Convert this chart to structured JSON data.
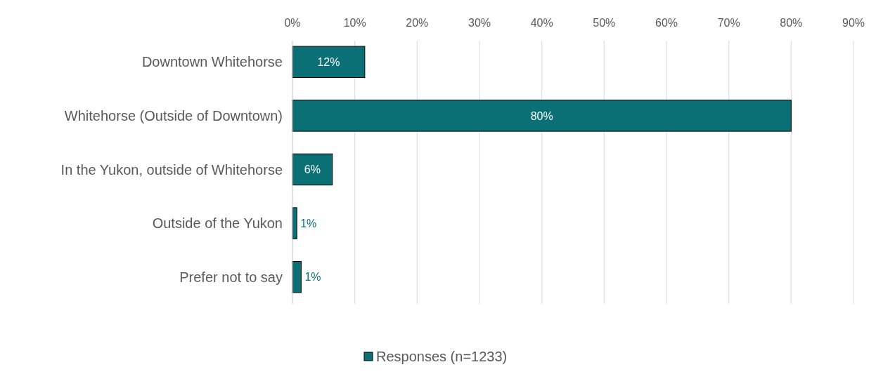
{
  "chart_data": {
    "type": "bar",
    "orientation": "horizontal",
    "categories": [
      "Downtown Whitehorse",
      "Whitehorse (Outside of Downtown)",
      "In the Yukon, outside of Whitehorse",
      "Outside of the Yukon",
      "Prefer not to say"
    ],
    "series": [
      {
        "name": "Responses (n=1233)",
        "color": "#0a7076",
        "values": [
          11.6,
          80,
          6.4,
          0.7,
          1.4
        ],
        "value_labels": [
          "12%",
          "80%",
          "6%",
          "1%",
          "1%"
        ]
      }
    ],
    "xlim": [
      0,
      90
    ],
    "xticks": [
      {
        "value": 0,
        "label": "0%"
      },
      {
        "value": 10,
        "label": "10%"
      },
      {
        "value": 20,
        "label": "20%"
      },
      {
        "value": 30,
        "label": "30%"
      },
      {
        "value": 40,
        "label": "40%"
      },
      {
        "value": 50,
        "label": "50%"
      },
      {
        "value": 60,
        "label": "60%"
      },
      {
        "value": 70,
        "label": "70%"
      },
      {
        "value": 80,
        "label": "80%"
      },
      {
        "value": 90,
        "label": "90%"
      }
    ],
    "grid": "x",
    "legend": "bottom"
  }
}
